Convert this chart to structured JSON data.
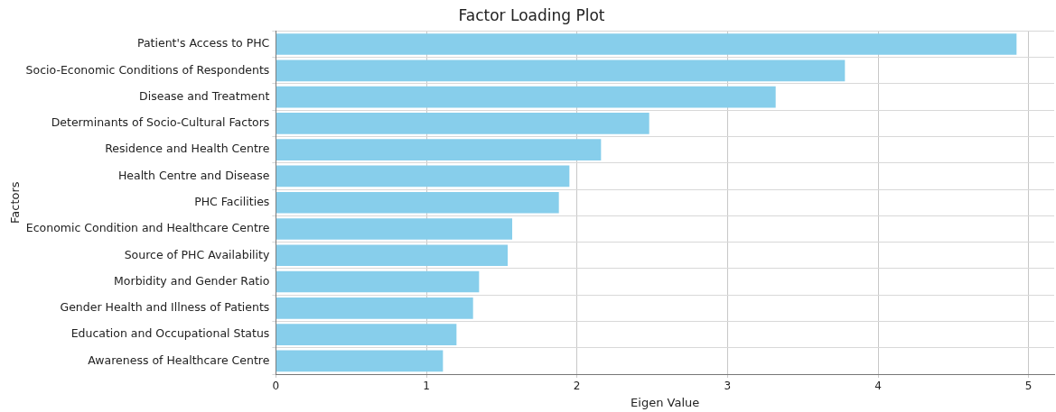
{
  "chart_data": {
    "type": "bar",
    "orientation": "horizontal",
    "title": "Factor Loading Plot",
    "xlabel": "Eigen Value",
    "ylabel": "Factors",
    "categories": [
      "Patient's Access to PHC",
      "Socio-Economic Conditions of Respondents",
      "Disease and Treatment",
      "Determinants of Socio-Cultural Factors",
      "Residence and Health Centre",
      "Health Centre and Disease",
      "PHC Facilities",
      "Economic Condition and Healthcare Centre",
      "Source of PHC Availability",
      "Morbidity and Gender Ratio",
      "Gender Health and Illness of Patients",
      "Education and Occupational Status",
      "Awareness of Healthcare Centre"
    ],
    "values": [
      4.92,
      3.78,
      3.32,
      2.48,
      2.16,
      1.95,
      1.88,
      1.57,
      1.54,
      1.35,
      1.31,
      1.2,
      1.11
    ],
    "color": "#87ceeb",
    "xlim": [
      0,
      5.17
    ],
    "xticks": [
      0,
      1,
      2,
      3,
      4,
      5
    ],
    "grid": true
  }
}
